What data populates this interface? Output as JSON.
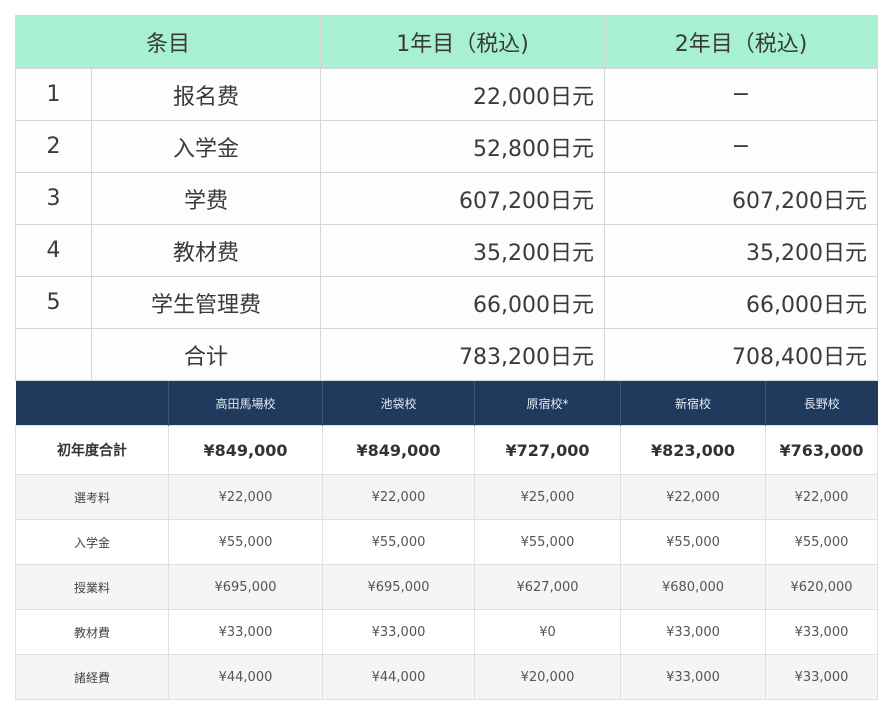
{
  "table1": {
    "headers": [
      "条目",
      "1年目（税込)",
      "2年目（税込)"
    ],
    "rows": [
      {
        "no": "1",
        "item": "报名费",
        "y1": "22,000日元",
        "y2": "−"
      },
      {
        "no": "2",
        "item": "入学金",
        "y1": "52,800日元",
        "y2": "−"
      },
      {
        "no": "3",
        "item": "学费",
        "y1": "607,200日元",
        "y2": "607,200日元"
      },
      {
        "no": "4",
        "item": "教材费",
        "y1": "35,200日元",
        "y2": "35,200日元"
      },
      {
        "no": "5",
        "item": "学生管理费",
        "y1": "66,000日元",
        "y2": "66,000日元"
      },
      {
        "no": "",
        "item": "合计",
        "y1": "783,200日元",
        "y2": "708,400日元"
      }
    ]
  },
  "table2": {
    "headers": [
      "",
      "高田馬場校",
      "池袋校",
      "原宿校*",
      "新宿校",
      "長野校"
    ],
    "rows": [
      {
        "label": "初年度合計",
        "values": [
          "¥849,000",
          "¥849,000",
          "¥727,000",
          "¥823,000",
          "¥763,000"
        ]
      },
      {
        "label": "選考料",
        "values": [
          "¥22,000",
          "¥22,000",
          "¥25,000",
          "¥22,000",
          "¥22,000"
        ]
      },
      {
        "label": "入学金",
        "values": [
          "¥55,000",
          "¥55,000",
          "¥55,000",
          "¥55,000",
          "¥55,000"
        ]
      },
      {
        "label": "授業料",
        "values": [
          "¥695,000",
          "¥695,000",
          "¥627,000",
          "¥680,000",
          "¥620,000"
        ]
      },
      {
        "label": "教材費",
        "values": [
          "¥33,000",
          "¥33,000",
          "¥0",
          "¥33,000",
          "¥33,000"
        ]
      },
      {
        "label": "諸経費",
        "values": [
          "¥44,000",
          "¥44,000",
          "¥20,000",
          "¥33,000",
          "¥33,000"
        ]
      }
    ]
  }
}
